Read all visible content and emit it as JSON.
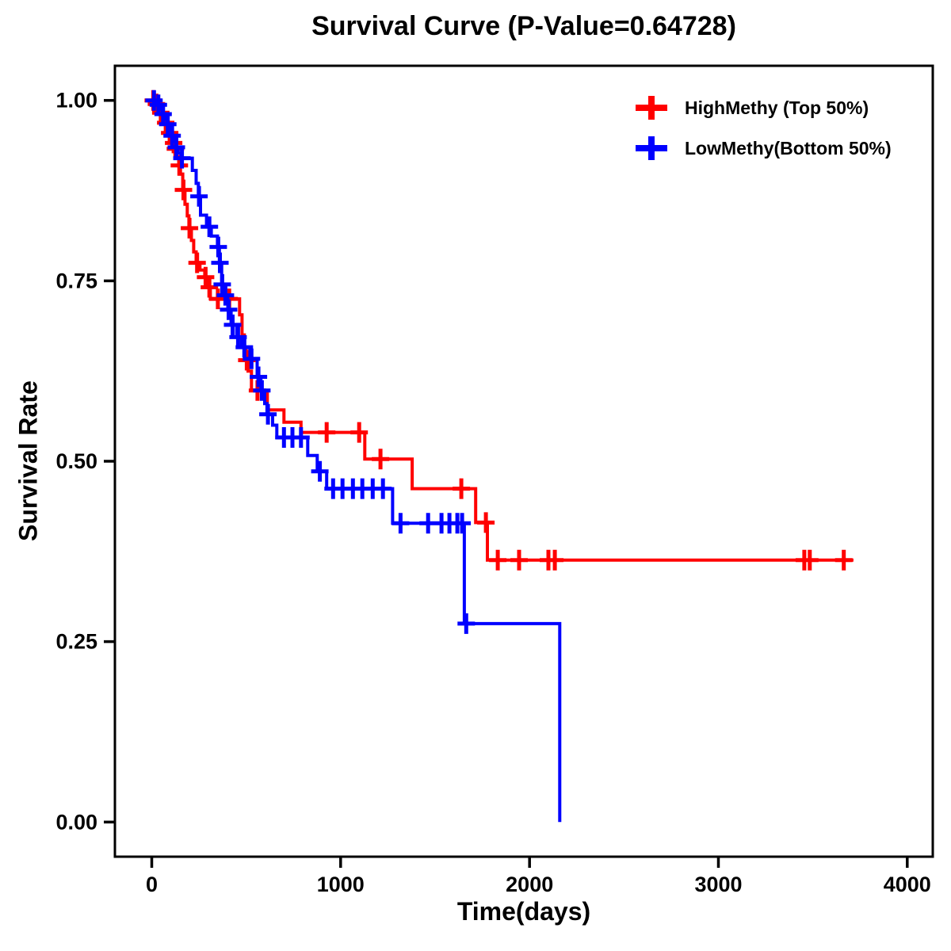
{
  "chart_data": {
    "type": "line",
    "subtype": "kaplan-meier-step-curve",
    "title": "Survival Curve (P-Value=0.64728)",
    "p_value": 0.64728,
    "grid": false,
    "legend_position": "top-right",
    "background_color": "#ffffff",
    "axis_color": "#000000",
    "x_axis": {
      "label": "Time(days)",
      "ticks": [
        0,
        1000,
        2000,
        3000,
        4000
      ],
      "tick_labels": [
        "0",
        "1000",
        "2000",
        "3000",
        "4000"
      ],
      "range": [
        -195,
        4135
      ]
    },
    "y_axis": {
      "label": "Survival Rate",
      "ticks": [
        0.0,
        0.25,
        0.5,
        0.75,
        1.0
      ],
      "tick_labels": [
        "0.00",
        "0.25",
        "0.50",
        "0.75",
        "1.00"
      ],
      "range": [
        -0.048,
        1.048
      ]
    },
    "series": [
      {
        "name": "highmethy",
        "label": "HighMethy (Top 50%)",
        "color": "#ff0000",
        "end_time": 3715,
        "steps": [
          [
            0,
            1.0
          ],
          [
            20,
            0.995
          ],
          [
            34,
            0.989
          ],
          [
            47,
            0.983
          ],
          [
            58,
            0.976
          ],
          [
            70,
            0.969
          ],
          [
            82,
            0.962
          ],
          [
            93,
            0.955
          ],
          [
            104,
            0.948
          ],
          [
            114,
            0.941
          ],
          [
            122,
            0.933
          ],
          [
            132,
            0.922
          ],
          [
            143,
            0.91
          ],
          [
            152,
            0.898
          ],
          [
            164,
            0.876
          ],
          [
            176,
            0.856
          ],
          [
            188,
            0.84
          ],
          [
            197,
            0.823
          ],
          [
            210,
            0.806
          ],
          [
            222,
            0.79
          ],
          [
            235,
            0.775
          ],
          [
            255,
            0.765
          ],
          [
            281,
            0.755
          ],
          [
            300,
            0.741
          ],
          [
            310,
            0.725
          ],
          [
            465,
            0.703
          ],
          [
            478,
            0.675
          ],
          [
            490,
            0.657
          ],
          [
            499,
            0.64
          ],
          [
            510,
            0.625
          ],
          [
            528,
            0.598
          ],
          [
            612,
            0.571
          ],
          [
            700,
            0.554
          ],
          [
            790,
            0.54
          ],
          [
            1128,
            0.503
          ],
          [
            1379,
            0.462
          ],
          [
            1715,
            0.415
          ],
          [
            1777,
            0.363
          ]
        ],
        "censors": [
          [
            8,
            1.0
          ],
          [
            25,
            0.995
          ],
          [
            48,
            0.983
          ],
          [
            74,
            0.969
          ],
          [
            95,
            0.955
          ],
          [
            116,
            0.941
          ],
          [
            125,
            0.933
          ],
          [
            146,
            0.91
          ],
          [
            168,
            0.876
          ],
          [
            200,
            0.823
          ],
          [
            240,
            0.775
          ],
          [
            285,
            0.755
          ],
          [
            305,
            0.741
          ],
          [
            350,
            0.725
          ],
          [
            410,
            0.725
          ],
          [
            503,
            0.64
          ],
          [
            560,
            0.598
          ],
          [
            926,
            0.54
          ],
          [
            1098,
            0.54
          ],
          [
            1211,
            0.503
          ],
          [
            1639,
            0.462
          ],
          [
            1769,
            0.415
          ],
          [
            1832,
            0.363
          ],
          [
            1945,
            0.363
          ],
          [
            2100,
            0.363
          ],
          [
            2134,
            0.363
          ],
          [
            3455,
            0.363
          ],
          [
            3484,
            0.363
          ],
          [
            3664,
            0.363
          ]
        ]
      },
      {
        "name": "lowmethy",
        "label": "LowMethy(Bottom 50%)",
        "color": "#0000ff",
        "end_time": 2160,
        "steps": [
          [
            0,
            1.0
          ],
          [
            28,
            0.994
          ],
          [
            42,
            0.988
          ],
          [
            55,
            0.981
          ],
          [
            68,
            0.974
          ],
          [
            80,
            0.967
          ],
          [
            92,
            0.959
          ],
          [
            104,
            0.951
          ],
          [
            116,
            0.943
          ],
          [
            128,
            0.935
          ],
          [
            140,
            0.927
          ],
          [
            155,
            0.92
          ],
          [
            215,
            0.903
          ],
          [
            235,
            0.885
          ],
          [
            247,
            0.867
          ],
          [
            258,
            0.841
          ],
          [
            290,
            0.825
          ],
          [
            315,
            0.812
          ],
          [
            348,
            0.797
          ],
          [
            358,
            0.775
          ],
          [
            370,
            0.745
          ],
          [
            383,
            0.73
          ],
          [
            403,
            0.71
          ],
          [
            420,
            0.689
          ],
          [
            450,
            0.672
          ],
          [
            475,
            0.658
          ],
          [
            520,
            0.642
          ],
          [
            558,
            0.617
          ],
          [
            578,
            0.598
          ],
          [
            598,
            0.58
          ],
          [
            610,
            0.565
          ],
          [
            640,
            0.55
          ],
          [
            662,
            0.533
          ],
          [
            826,
            0.508
          ],
          [
            876,
            0.486
          ],
          [
            926,
            0.462
          ],
          [
            1275,
            0.414
          ],
          [
            1655,
            0.275
          ],
          [
            2160,
            0.0
          ]
        ],
        "censors": [
          [
            12,
            1.0
          ],
          [
            35,
            0.994
          ],
          [
            60,
            0.981
          ],
          [
            85,
            0.967
          ],
          [
            108,
            0.951
          ],
          [
            130,
            0.935
          ],
          [
            160,
            0.92
          ],
          [
            250,
            0.867
          ],
          [
            305,
            0.825
          ],
          [
            352,
            0.797
          ],
          [
            361,
            0.775
          ],
          [
            373,
            0.745
          ],
          [
            390,
            0.73
          ],
          [
            407,
            0.71
          ],
          [
            428,
            0.689
          ],
          [
            457,
            0.672
          ],
          [
            490,
            0.658
          ],
          [
            528,
            0.642
          ],
          [
            565,
            0.617
          ],
          [
            583,
            0.598
          ],
          [
            615,
            0.565
          ],
          [
            700,
            0.533
          ],
          [
            745,
            0.533
          ],
          [
            790,
            0.533
          ],
          [
            890,
            0.486
          ],
          [
            960,
            0.462
          ],
          [
            1010,
            0.462
          ],
          [
            1065,
            0.462
          ],
          [
            1115,
            0.462
          ],
          [
            1170,
            0.462
          ],
          [
            1224,
            0.462
          ],
          [
            1317,
            0.414
          ],
          [
            1463,
            0.414
          ],
          [
            1534,
            0.414
          ],
          [
            1576,
            0.414
          ],
          [
            1618,
            0.414
          ],
          [
            1643,
            0.414
          ],
          [
            1665,
            0.275
          ]
        ]
      }
    ]
  }
}
